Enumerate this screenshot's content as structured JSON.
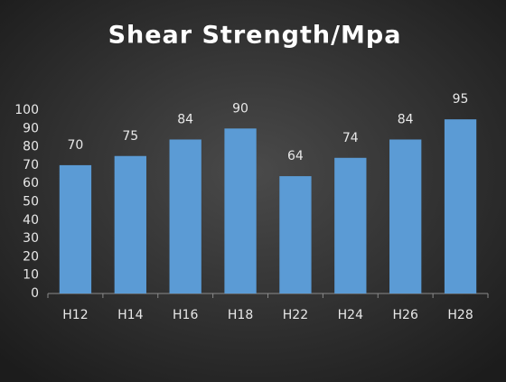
{
  "chart_data": {
    "type": "bar",
    "title": "Shear Strength/Mpa",
    "categories": [
      "H12",
      "H14",
      "H16",
      "H18",
      "H22",
      "H24",
      "H26",
      "H28"
    ],
    "values": [
      70,
      75,
      84,
      90,
      64,
      74,
      84,
      95
    ],
    "color": "#5b9bd5",
    "ylim": [
      0,
      100
    ],
    "yticks": [
      0,
      10,
      20,
      30,
      40,
      50,
      60,
      70,
      80,
      90,
      100
    ],
    "grid": false
  }
}
